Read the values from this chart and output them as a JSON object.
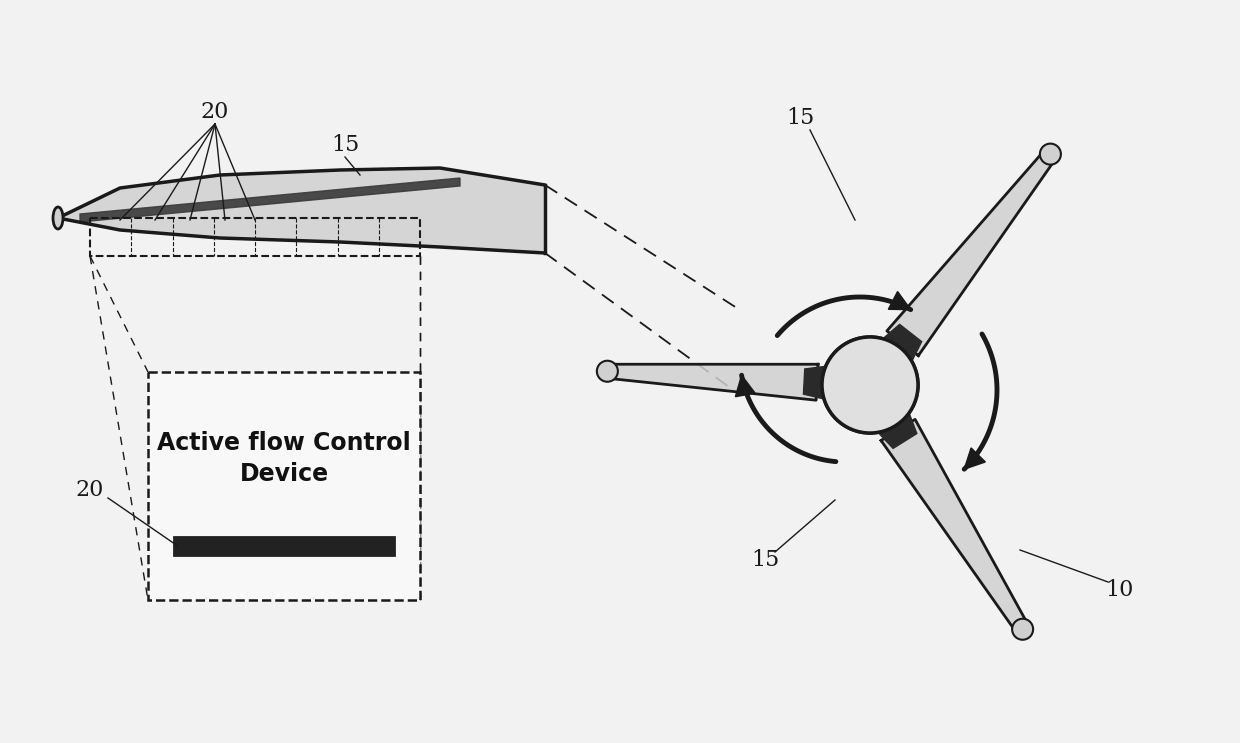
{
  "bg_color": "#f2f2f2",
  "line_color": "#1a1a1a",
  "blade_fill": "#d0d0d0",
  "hub_fill": "#e0e0e0",
  "dark_fill": "#2a2a2a",
  "box_fill": "#f8f8f8",
  "text_active_flow": "Active flow Control\nDevice",
  "figsize": [
    12.4,
    7.43
  ],
  "dpi": 100
}
